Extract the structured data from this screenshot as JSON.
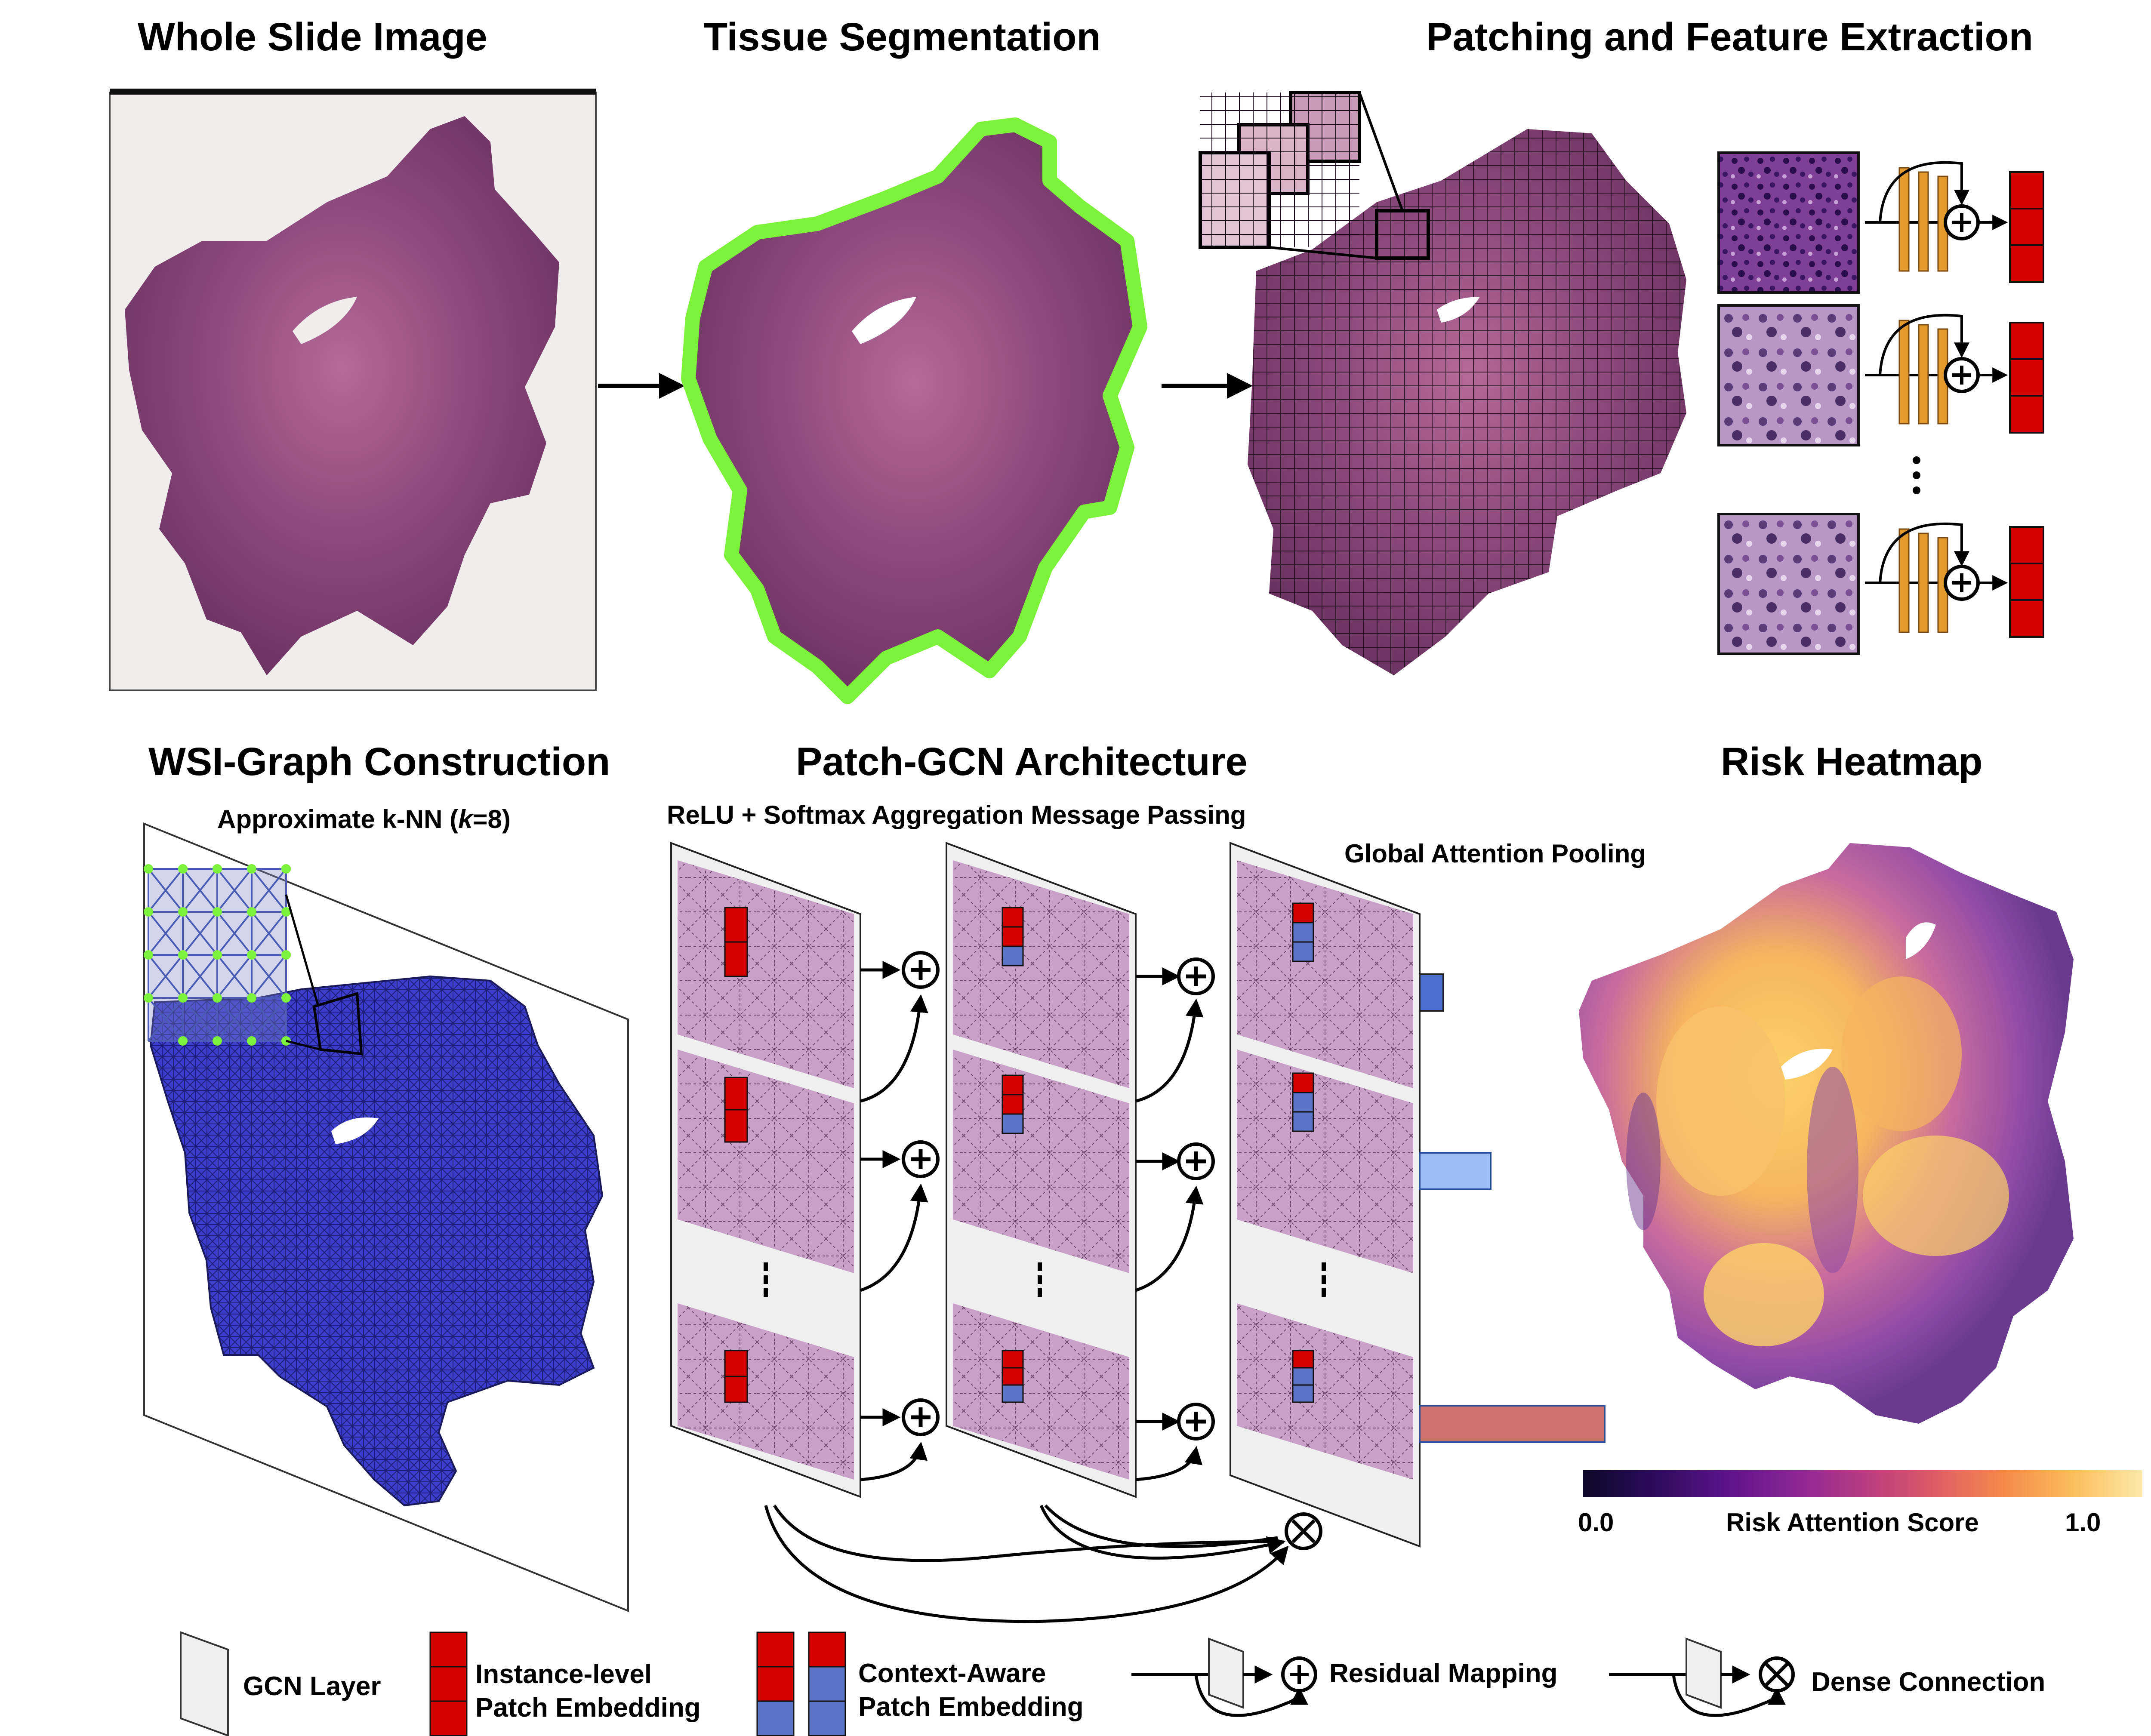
{
  "titles": {
    "wsi": "Whole Slide Image",
    "seg": "Tissue Segmentation",
    "patch": "Patching and Feature Extraction",
    "graph": "WSI-Graph Construction",
    "gcn": "Patch-GCN Architecture",
    "risk": "Risk Heatmap"
  },
  "subtitles": {
    "knn_prefix": "Approximate k-NN (",
    "knn_k": "k",
    "knn_suffix": "=8)",
    "message_passing": "ReLU + Softmax Aggregation Message Passing",
    "attention": "Global Attention Pooling"
  },
  "colorbar": {
    "min": "0.0",
    "label": "Risk Attention Score",
    "max": "1.0"
  },
  "legend": {
    "gcn_layer": "GCN Layer",
    "instance_line1": "Instance-level",
    "instance_line2": "Patch Embedding",
    "context_line1": "Context-Aware",
    "context_line2": "Patch Embedding",
    "residual": "Residual Mapping",
    "dense": "Dense Connection"
  },
  "colors": {
    "tissue": "#8a4a78",
    "segmentation_outline": "#7cf23a",
    "embedding_red": "#d40000",
    "embedding_blue": "#5a73c4",
    "feature_orange": "#e39a2c",
    "graph_blue": "#3f3fc8",
    "attention_bar_low": "#4a6fd0",
    "attention_bar_mid": "#9cbcf5",
    "attention_bar_high": "#cd726c"
  }
}
